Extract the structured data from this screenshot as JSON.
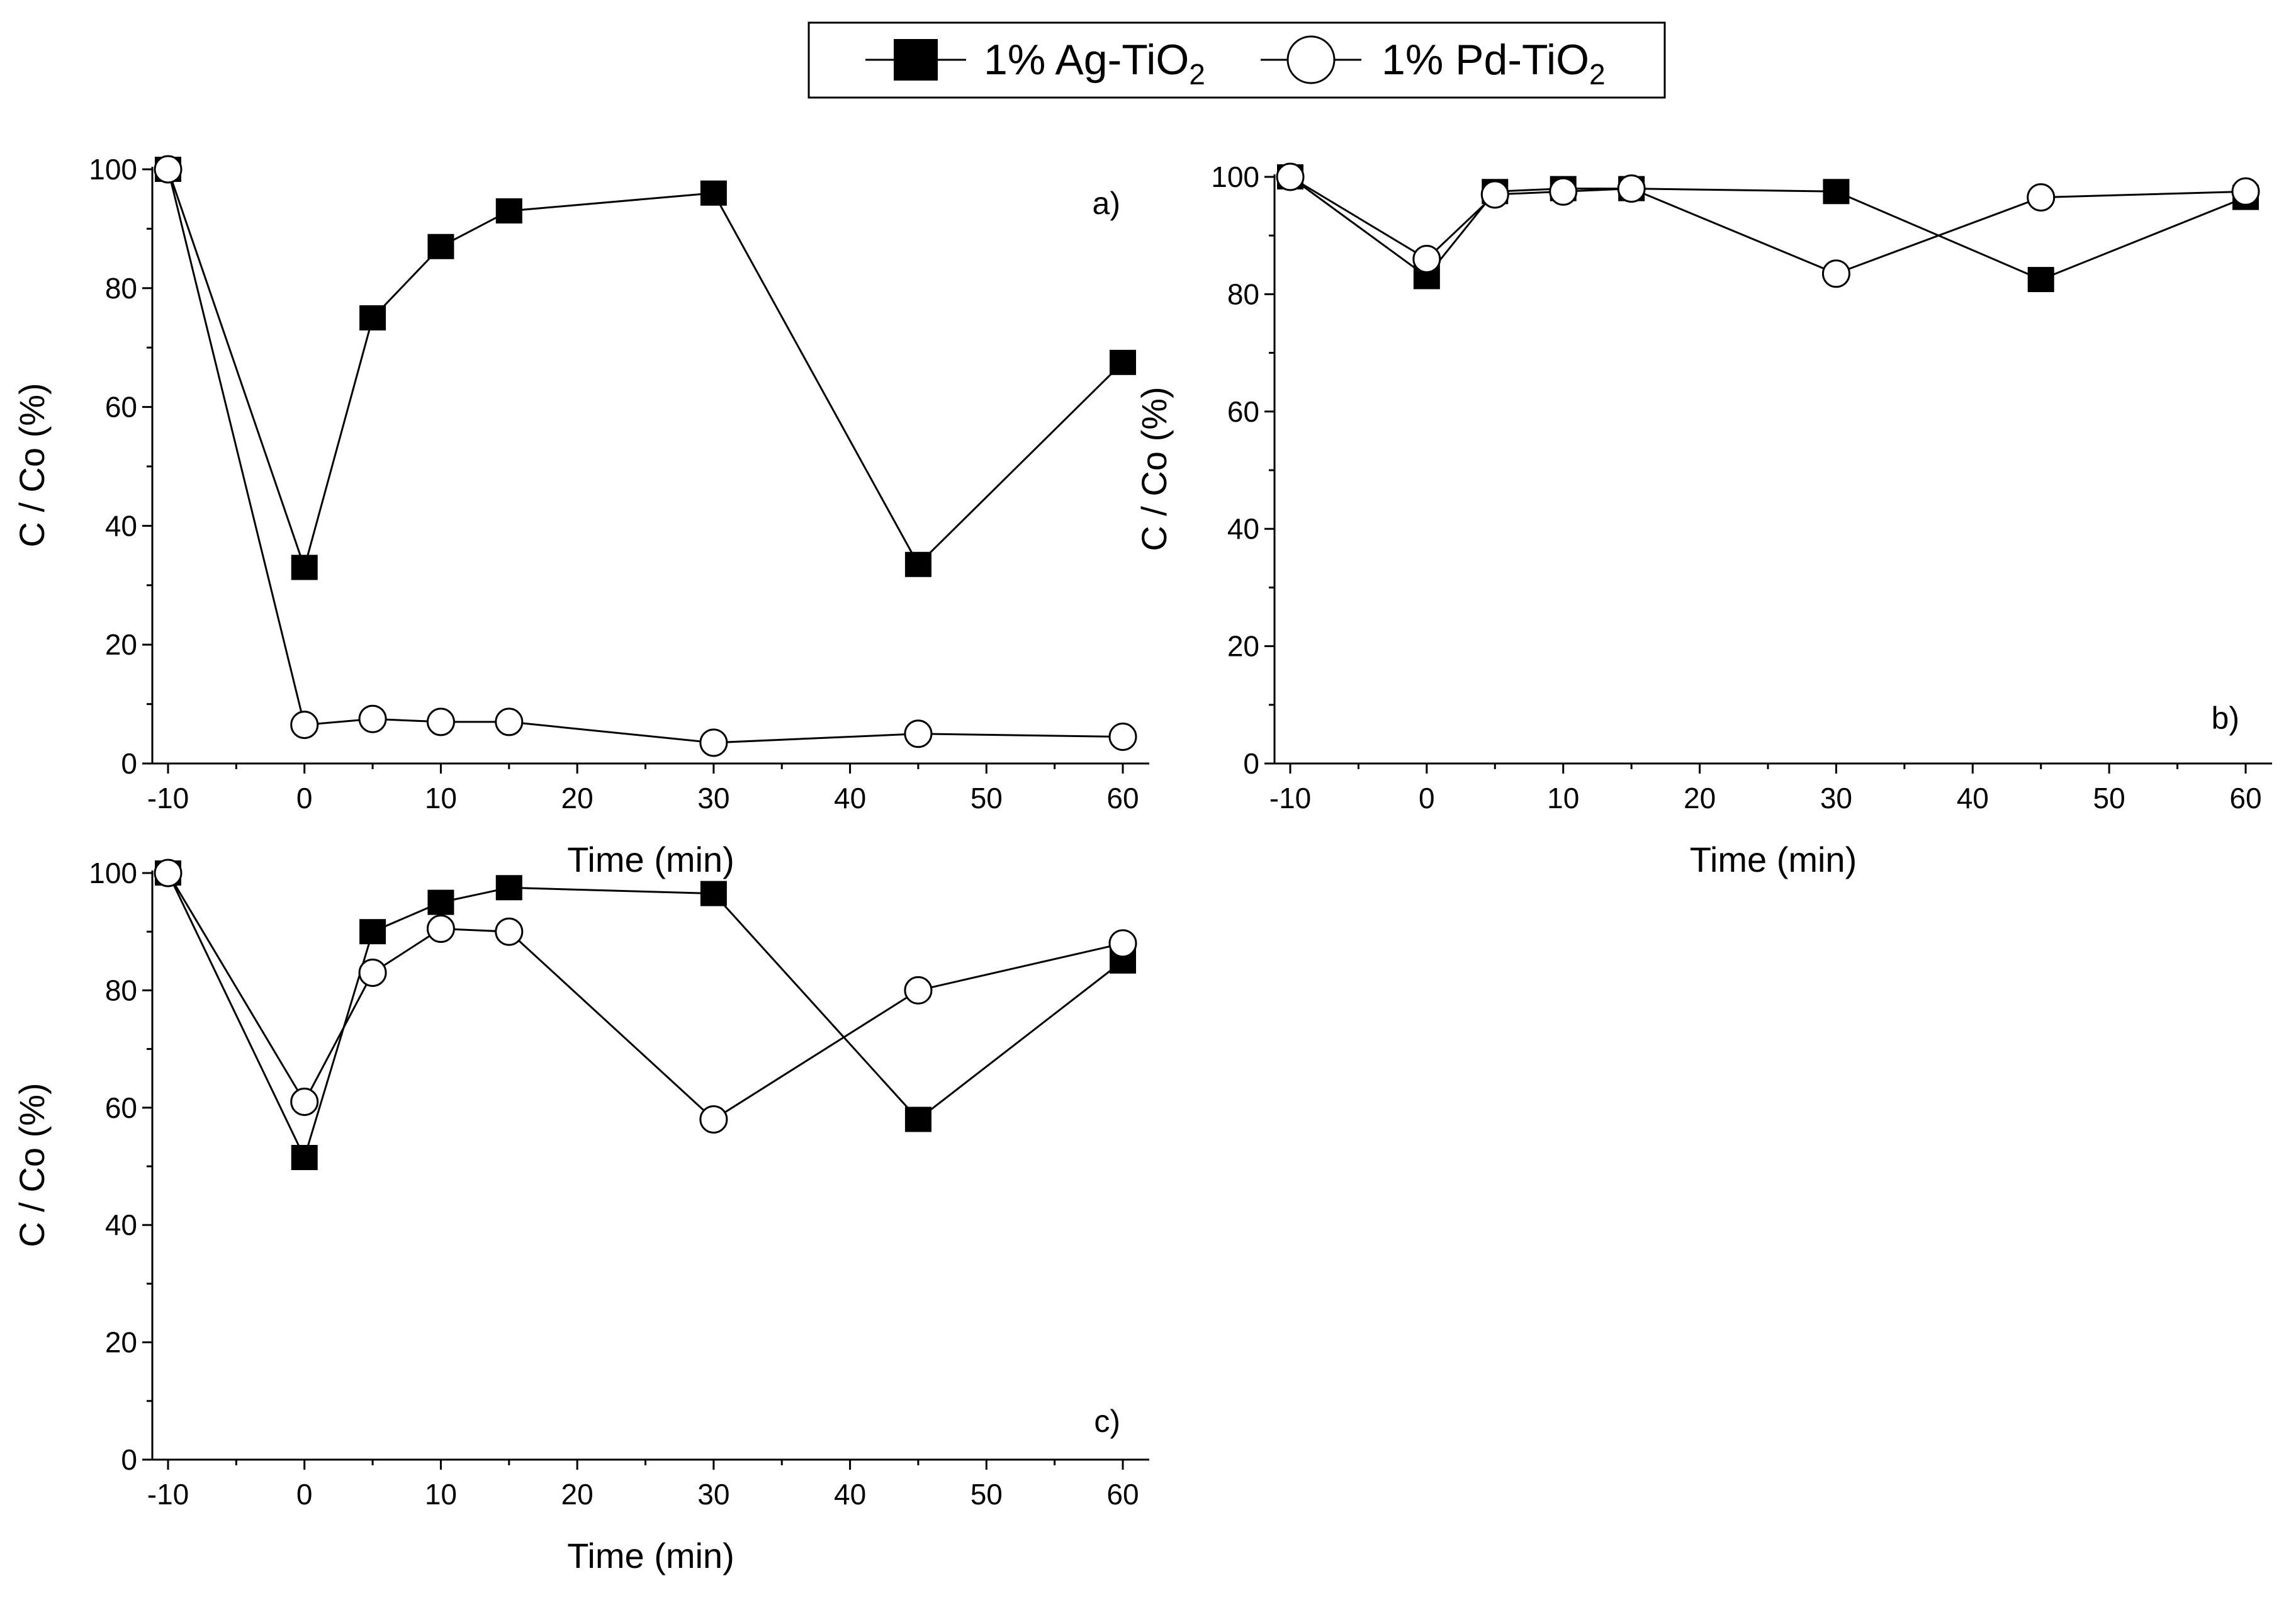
{
  "legend": {
    "entries": [
      {
        "label": "1% Ag-TiO",
        "sub": "2",
        "marker": "filled-square"
      },
      {
        "label": "1% Pd-TiO",
        "sub": "2",
        "marker": "open-circle"
      }
    ]
  },
  "chart_data": [
    {
      "type": "line",
      "panel_label": "a)",
      "xlabel": "Time (min)",
      "ylabel": "C / Co (%)",
      "xlim": [
        -10,
        60
      ],
      "ylim": [
        0,
        100
      ],
      "xticks": [
        -10,
        0,
        10,
        20,
        30,
        40,
        50,
        60
      ],
      "yticks": [
        0,
        20,
        40,
        60,
        80,
        100
      ],
      "x": [
        -10,
        0,
        5,
        10,
        15,
        30,
        45,
        60
      ],
      "series": [
        {
          "name": "1% Ag-TiO2",
          "marker": "filled-square",
          "values": [
            100,
            33,
            75,
            87,
            93,
            96,
            33.5,
            67.5
          ]
        },
        {
          "name": "1% Pd-TiO2",
          "marker": "open-circle",
          "values": [
            100,
            6.5,
            7.5,
            7,
            7,
            3.5,
            5,
            4.5
          ]
        }
      ]
    },
    {
      "type": "line",
      "panel_label": "b)",
      "xlabel": "Time (min)",
      "ylabel": "C / Co (%)",
      "xlim": [
        -10,
        60
      ],
      "ylim": [
        0,
        100
      ],
      "xticks": [
        -10,
        0,
        10,
        20,
        30,
        40,
        50,
        60
      ],
      "yticks": [
        0,
        20,
        40,
        60,
        80,
        100
      ],
      "x": [
        -10,
        0,
        5,
        10,
        15,
        30,
        45,
        60
      ],
      "series": [
        {
          "name": "1% Ag-TiO2",
          "marker": "filled-square",
          "values": [
            100,
            83,
            97.5,
            98,
            98,
            97.5,
            82.5,
            96.5
          ]
        },
        {
          "name": "1% Pd-TiO2",
          "marker": "open-circle",
          "values": [
            100,
            86,
            97,
            97.5,
            98,
            83.5,
            96.5,
            97.5
          ]
        }
      ]
    },
    {
      "type": "line",
      "panel_label": "c)",
      "xlabel": "Time (min)",
      "ylabel": "C / Co (%)",
      "xlim": [
        -10,
        60
      ],
      "ylim": [
        0,
        100
      ],
      "xticks": [
        -10,
        0,
        10,
        20,
        30,
        40,
        50,
        60
      ],
      "yticks": [
        0,
        20,
        40,
        60,
        80,
        100
      ],
      "x": [
        -10,
        0,
        5,
        10,
        15,
        30,
        45,
        60
      ],
      "series": [
        {
          "name": "1% Ag-TiO2",
          "marker": "filled-square",
          "values": [
            100,
            51.5,
            90,
            95,
            97.5,
            96.5,
            58,
            85
          ]
        },
        {
          "name": "1% Pd-TiO2",
          "marker": "open-circle",
          "values": [
            100,
            61,
            83,
            90.5,
            90,
            58,
            80,
            88
          ]
        }
      ]
    }
  ]
}
